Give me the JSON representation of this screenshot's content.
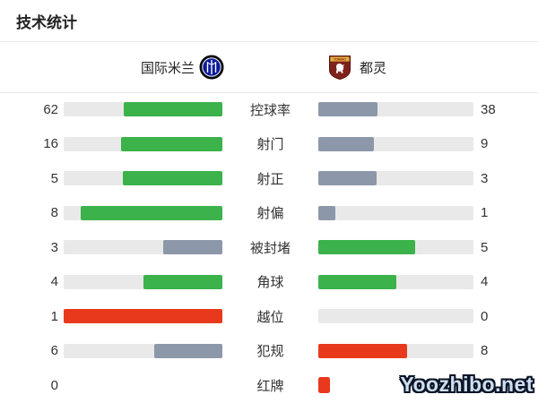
{
  "page": {
    "title": "技术统计"
  },
  "teams": {
    "home": {
      "name": "国际米兰",
      "badge_icon": "inter-milan-badge"
    },
    "away": {
      "name": "都灵",
      "badge_icon": "torino-badge"
    }
  },
  "colors": {
    "green": "#3bb24a",
    "slate": "#8c98a9",
    "red": "#e8391d",
    "track": "#e9e9e9"
  },
  "stats": [
    {
      "label": "控球率",
      "home": {
        "value": "62",
        "bar_pct": 62,
        "bar_color": "green",
        "track": true
      },
      "away": {
        "value": "38",
        "bar_pct": 38,
        "bar_color": "slate",
        "track": true
      }
    },
    {
      "label": "射门",
      "home": {
        "value": "16",
        "bar_pct": 64,
        "bar_color": "green",
        "track": true
      },
      "away": {
        "value": "9",
        "bar_pct": 36,
        "bar_color": "slate",
        "track": true
      }
    },
    {
      "label": "射正",
      "home": {
        "value": "5",
        "bar_pct": 62.5,
        "bar_color": "green",
        "track": true
      },
      "away": {
        "value": "3",
        "bar_pct": 37.5,
        "bar_color": "slate",
        "track": true
      }
    },
    {
      "label": "射偏",
      "home": {
        "value": "8",
        "bar_pct": 89,
        "bar_color": "green",
        "track": true
      },
      "away": {
        "value": "1",
        "bar_pct": 11,
        "bar_color": "slate",
        "track": true
      }
    },
    {
      "label": "被封堵",
      "home": {
        "value": "3",
        "bar_pct": 37.5,
        "bar_color": "slate",
        "track": true
      },
      "away": {
        "value": "5",
        "bar_pct": 62.5,
        "bar_color": "green",
        "track": true
      }
    },
    {
      "label": "角球",
      "home": {
        "value": "4",
        "bar_pct": 50,
        "bar_color": "green",
        "track": true
      },
      "away": {
        "value": "4",
        "bar_pct": 50,
        "bar_color": "green",
        "track": true
      }
    },
    {
      "label": "越位",
      "home": {
        "value": "1",
        "bar_pct": 100,
        "bar_color": "red",
        "track": true
      },
      "away": {
        "value": "0",
        "bar_pct": 0,
        "bar_color": null,
        "track": true
      }
    },
    {
      "label": "犯规",
      "home": {
        "value": "6",
        "bar_pct": 43,
        "bar_color": "slate",
        "track": true
      },
      "away": {
        "value": "8",
        "bar_pct": 57,
        "bar_color": "red",
        "track": true
      }
    },
    {
      "label": "红牌",
      "home": {
        "value": "0",
        "bar_pct": 0,
        "bar_color": null,
        "track": false
      },
      "away": {
        "value": "",
        "bar_pct": 0,
        "bar_color": null,
        "track": false,
        "icon": "red-card-icon"
      }
    }
  ],
  "watermark": {
    "text": "Yoozhibo.net"
  }
}
